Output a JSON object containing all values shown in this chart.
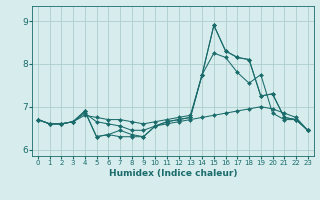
{
  "title": "",
  "xlabel": "Humidex (Indice chaleur)",
  "xlim": [
    -0.5,
    23.5
  ],
  "ylim": [
    5.85,
    9.35
  ],
  "yticks": [
    6,
    7,
    8,
    9
  ],
  "xticks": [
    0,
    1,
    2,
    3,
    4,
    5,
    6,
    7,
    8,
    9,
    10,
    11,
    12,
    13,
    14,
    15,
    16,
    17,
    18,
    19,
    20,
    21,
    22,
    23
  ],
  "background_color": "#d7ecec",
  "grid_color": "#aecece",
  "line_color": "#1a6b6b",
  "lines": [
    {
      "x": [
        0,
        1,
        2,
        3,
        4,
        5,
        6,
        7,
        8,
        9,
        10,
        11,
        12,
        13,
        14,
        15,
        16,
        17,
        18,
        19,
        20,
        21,
        22,
        23
      ],
      "y": [
        6.7,
        6.6,
        6.6,
        6.65,
        6.85,
        6.65,
        6.6,
        6.55,
        6.45,
        6.45,
        6.55,
        6.6,
        6.65,
        6.7,
        6.75,
        6.8,
        6.85,
        6.9,
        6.95,
        7.0,
        6.95,
        6.85,
        6.75,
        6.45
      ]
    },
    {
      "x": [
        0,
        1,
        2,
        3,
        4,
        5,
        6,
        7,
        8,
        9,
        10,
        11,
        12,
        13,
        14,
        15,
        16,
        17,
        18,
        19,
        20,
        21,
        22,
        23
      ],
      "y": [
        6.7,
        6.6,
        6.6,
        6.65,
        6.8,
        6.75,
        6.7,
        6.7,
        6.65,
        6.6,
        6.65,
        6.7,
        6.75,
        6.8,
        7.75,
        8.25,
        8.15,
        7.8,
        7.55,
        7.75,
        6.85,
        6.7,
        6.7,
        6.45
      ]
    },
    {
      "x": [
        0,
        1,
        2,
        3,
        4,
        5,
        6,
        7,
        8,
        9,
        10,
        11,
        12,
        13,
        14,
        15,
        16,
        17,
        18,
        19,
        20,
        21,
        22,
        23
      ],
      "y": [
        6.7,
        6.6,
        6.6,
        6.65,
        6.9,
        6.3,
        6.35,
        6.3,
        6.3,
        6.3,
        6.55,
        6.65,
        6.7,
        6.75,
        7.75,
        8.9,
        8.3,
        8.15,
        8.1,
        7.25,
        7.3,
        6.75,
        6.7,
        6.45
      ]
    },
    {
      "x": [
        0,
        1,
        2,
        3,
        4,
        5,
        6,
        7,
        8,
        9,
        10,
        11,
        12,
        13,
        14,
        15,
        16,
        17,
        18,
        19,
        20,
        21,
        22,
        23
      ],
      "y": [
        6.7,
        6.6,
        6.6,
        6.65,
        6.9,
        6.3,
        6.35,
        6.45,
        6.35,
        6.3,
        6.55,
        6.65,
        6.7,
        6.75,
        7.75,
        8.9,
        8.3,
        8.15,
        8.1,
        7.25,
        7.3,
        6.75,
        6.7,
        6.45
      ]
    }
  ],
  "figsize": [
    3.2,
    2.0
  ],
  "dpi": 100
}
